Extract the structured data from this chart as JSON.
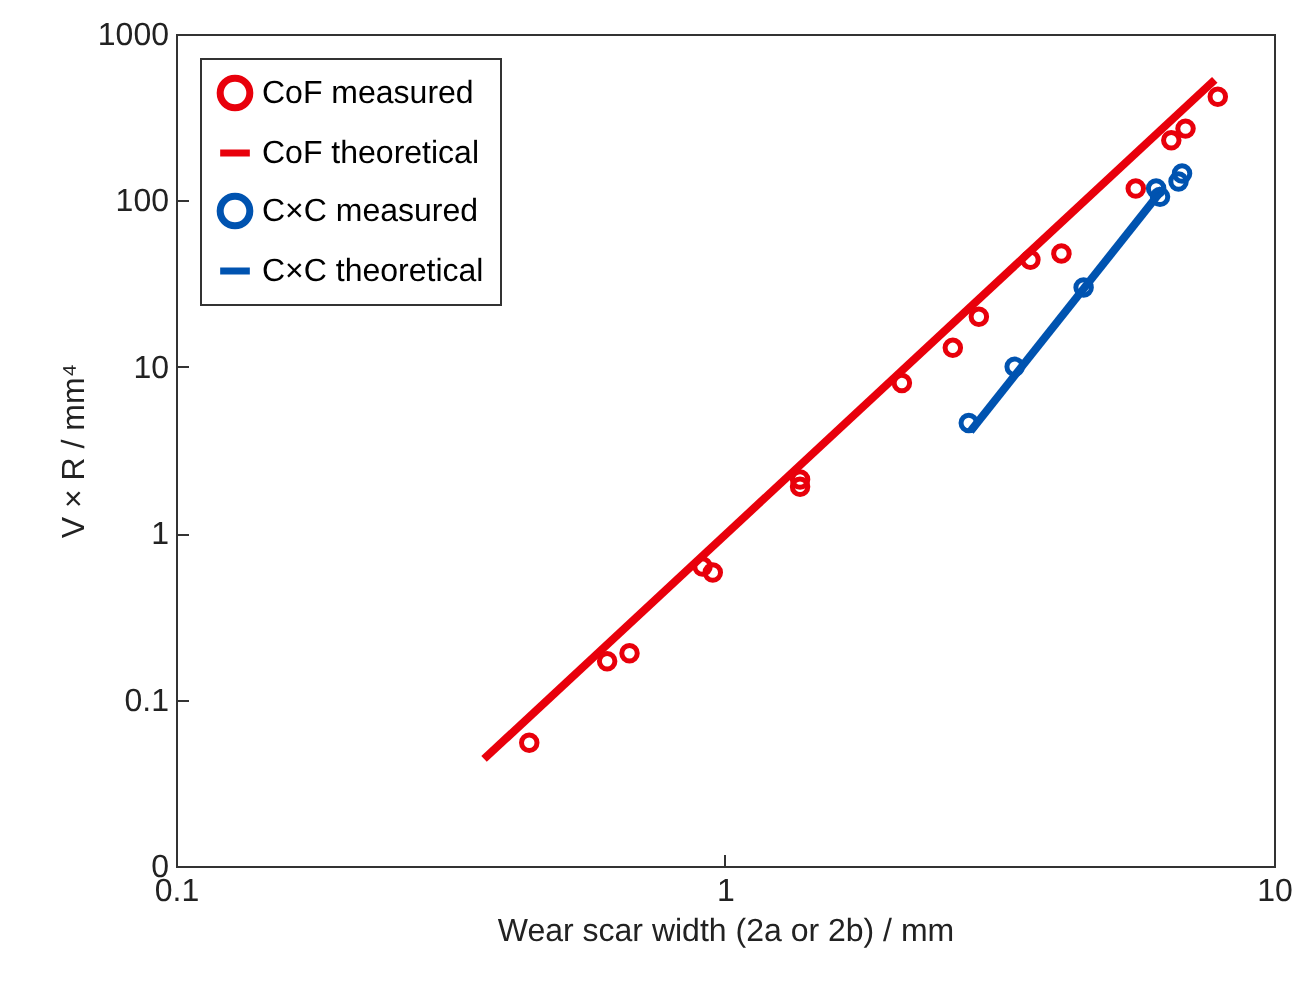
{
  "chart_data": {
    "type": "scatter",
    "xlabel": "Wear scar width (2a or 2b) / mm",
    "ylabel": "V × R / mm⁴",
    "log": "xy",
    "grid": false,
    "legend": "top left",
    "xlim": [
      0.1,
      10
    ],
    "xticks": [
      0.1,
      1,
      10
    ],
    "ylim": [
      0.01,
      1000
    ],
    "yticks": [
      {
        "value": 0.01,
        "label": "0"
      },
      0.1,
      1,
      10,
      100,
      1000
    ],
    "series": [
      {
        "name": "CoF measured",
        "marker": "circle",
        "color": "#e8000b",
        "x": [
          0.44,
          0.61,
          0.67,
          0.91,
          0.95,
          1.37,
          1.37,
          2.1,
          2.6,
          2.9,
          3.6,
          4.1,
          5.6,
          6.5,
          6.9,
          7.9
        ],
        "values": [
          0.055,
          0.17,
          0.19,
          0.63,
          0.58,
          1.9,
          2.1,
          8,
          13,
          20,
          44,
          48,
          118,
          230,
          270,
          420
        ]
      },
      {
        "name": "CoF theoretical",
        "type": "line",
        "marker": "none",
        "color": "#e8000b",
        "x": [
          0.364,
          7.8
        ],
        "values": [
          0.044,
          530
        ]
      },
      {
        "name": "C×C measured",
        "marker": "circle",
        "color": "#0053b0",
        "x": [
          2.78,
          3.37,
          4.5,
          6.1,
          6.2,
          6.7,
          6.8
        ],
        "values": [
          4.6,
          10,
          30,
          118,
          105,
          130,
          145
        ]
      },
      {
        "name": "C×C theoretical",
        "type": "line",
        "marker": "none",
        "color": "#0053b0",
        "x": [
          2.8,
          6.27
        ],
        "values": [
          4.1,
          117
        ]
      }
    ]
  }
}
